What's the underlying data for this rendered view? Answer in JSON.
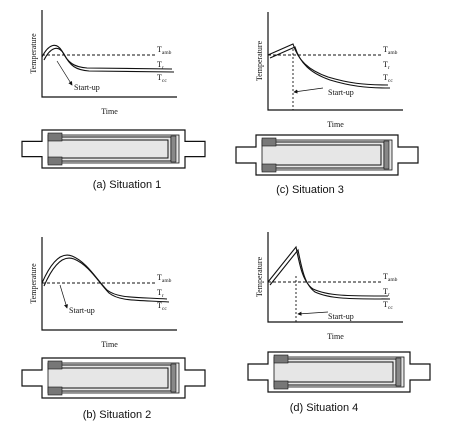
{
  "panels": [
    {
      "caption": "(a) Situation 1",
      "y_label": "Temperature",
      "x_label": "Time",
      "start_label": "Start-up",
      "curve_labels": [
        {
          "symbol": "T",
          "sub": "amb"
        },
        {
          "symbol": "T",
          "sub": "r"
        },
        {
          "symbol": "T",
          "sub": "cc"
        }
      ]
    },
    {
      "caption": "(b) Situation 2",
      "y_label": "Temperature",
      "x_label": "Time",
      "start_label": "Start-up",
      "curve_labels": [
        {
          "symbol": "T",
          "sub": "amb"
        },
        {
          "symbol": "T",
          "sub": "r"
        },
        {
          "symbol": "T",
          "sub": "cc"
        }
      ]
    },
    {
      "caption": "(c) Situation 3",
      "y_label": "Temperature",
      "x_label": "Time",
      "start_label": "Start-up",
      "curve_labels": [
        {
          "symbol": "T",
          "sub": "amb"
        },
        {
          "symbol": "T",
          "sub": "r"
        },
        {
          "symbol": "T",
          "sub": "cc"
        }
      ]
    },
    {
      "caption": "(d) Situation 4",
      "y_label": "Temperature",
      "x_label": "Time",
      "start_label": "Start-up",
      "curve_labels": [
        {
          "symbol": "T",
          "sub": "amb"
        },
        {
          "symbol": "T",
          "sub": "r"
        },
        {
          "symbol": "T",
          "sub": "cc"
        }
      ]
    }
  ]
}
